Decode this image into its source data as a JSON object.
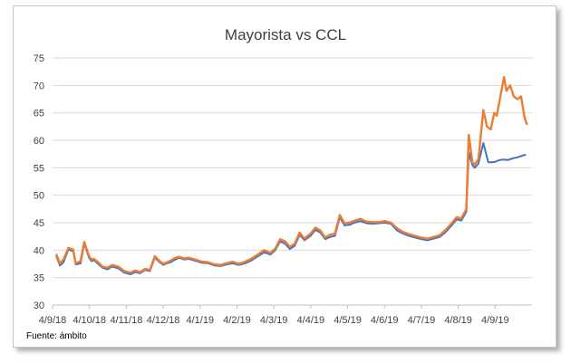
{
  "chart_data": {
    "type": "line",
    "title": "Mayorista vs CCL",
    "xlabel": "",
    "ylabel": "",
    "ylim": [
      30,
      75
    ],
    "yticks": [
      30,
      35,
      40,
      45,
      50,
      55,
      60,
      65,
      70,
      75
    ],
    "xticks": [
      "4/9/18",
      "4/10/18",
      "4/11/18",
      "4/12/18",
      "4/1/19",
      "4/2/19",
      "4/3/19",
      "4/4/19",
      "4/5/19",
      "4/6/19",
      "4/7/19",
      "4/8/19",
      "4/9/19"
    ],
    "grid": "horizontal",
    "legend": "none",
    "source": "Fuente: ámbito",
    "series": [
      {
        "color": "#4472c4",
        "x": [
          "2018-09-04",
          "2018-09-07",
          "2018-09-10",
          "2018-09-14",
          "2018-09-18",
          "2018-09-20",
          "2018-09-24",
          "2018-09-27",
          "2018-10-01",
          "2018-10-03",
          "2018-10-05",
          "2018-10-09",
          "2018-10-12",
          "2018-10-16",
          "2018-10-20",
          "2018-10-25",
          "2018-10-30",
          "2018-11-04",
          "2018-11-08",
          "2018-11-12",
          "2018-11-16",
          "2018-11-20",
          "2018-11-24",
          "2018-11-28",
          "2018-12-01",
          "2018-12-04",
          "2018-12-07",
          "2018-12-10",
          "2018-12-14",
          "2018-12-18",
          "2018-12-22",
          "2018-12-27",
          "2019-01-02",
          "2019-01-07",
          "2019-01-12",
          "2019-01-17",
          "2019-01-22",
          "2019-01-27",
          "2019-02-01",
          "2019-02-06",
          "2019-02-11",
          "2019-02-16",
          "2019-02-22",
          "2019-02-27",
          "2019-03-03",
          "2019-03-07",
          "2019-03-11",
          "2019-03-15",
          "2019-03-19",
          "2019-03-23",
          "2019-03-27",
          "2019-04-01",
          "2019-04-05",
          "2019-04-09",
          "2019-04-13",
          "2019-04-17",
          "2019-04-21",
          "2019-04-25",
          "2019-04-29",
          "2019-05-03",
          "2019-05-07",
          "2019-05-12",
          "2019-05-17",
          "2019-05-22",
          "2019-05-27",
          "2019-06-01",
          "2019-06-06",
          "2019-06-11",
          "2019-06-16",
          "2019-06-21",
          "2019-06-26",
          "2019-07-01",
          "2019-07-06",
          "2019-07-11",
          "2019-07-16",
          "2019-07-21",
          "2019-07-26",
          "2019-07-30",
          "2019-08-03",
          "2019-08-07",
          "2019-08-09",
          "2019-08-12",
          "2019-08-14",
          "2019-08-17",
          "2019-08-21",
          "2019-08-25",
          "2019-08-28",
          "2019-08-31",
          "2019-09-02",
          "2019-09-06",
          "2019-09-10",
          "2019-09-14",
          "2019-09-18",
          "2019-09-22",
          "2019-09-25"
        ],
        "values": [
          39.0,
          37.2,
          37.8,
          40.1,
          39.8,
          37.4,
          37.6,
          41.2,
          38.6,
          38.0,
          38.2,
          37.4,
          36.8,
          36.5,
          37.0,
          36.7,
          35.9,
          35.6,
          36.0,
          35.8,
          36.4,
          36.2,
          38.6,
          37.8,
          37.3,
          37.6,
          37.8,
          38.2,
          38.6,
          38.3,
          38.4,
          38.1,
          37.7,
          37.6,
          37.2,
          37.1,
          37.4,
          37.6,
          37.3,
          37.6,
          38.1,
          38.8,
          39.6,
          39.2,
          40.0,
          41.6,
          41.2,
          40.2,
          40.8,
          42.8,
          41.8,
          42.6,
          43.7,
          43.2,
          42.0,
          42.4,
          42.6,
          46.0,
          44.5,
          44.6,
          45.0,
          45.3,
          44.9,
          44.8,
          44.9,
          45.0,
          44.8,
          43.6,
          43.0,
          42.6,
          42.3,
          42.0,
          41.8,
          42.1,
          42.4,
          43.3,
          44.5,
          45.6,
          45.4,
          47.0,
          57.8,
          55.5,
          55.0,
          55.8,
          59.5,
          56.0,
          56.0,
          56.1,
          56.3,
          56.5,
          56.4,
          56.7,
          56.9,
          57.2,
          57.4
        ]
      },
      {
        "color": "#ed7d31",
        "x": [
          "2018-09-04",
          "2018-09-07",
          "2018-09-10",
          "2018-09-14",
          "2018-09-18",
          "2018-09-20",
          "2018-09-24",
          "2018-09-27",
          "2018-10-01",
          "2018-10-03",
          "2018-10-05",
          "2018-10-09",
          "2018-10-12",
          "2018-10-16",
          "2018-10-20",
          "2018-10-25",
          "2018-10-30",
          "2018-11-04",
          "2018-11-08",
          "2018-11-12",
          "2018-11-16",
          "2018-11-20",
          "2018-11-24",
          "2018-11-28",
          "2018-12-01",
          "2018-12-04",
          "2018-12-07",
          "2018-12-10",
          "2018-12-14",
          "2018-12-18",
          "2018-12-22",
          "2018-12-27",
          "2019-01-02",
          "2019-01-07",
          "2019-01-12",
          "2019-01-17",
          "2019-01-22",
          "2019-01-27",
          "2019-02-01",
          "2019-02-06",
          "2019-02-11",
          "2019-02-16",
          "2019-02-22",
          "2019-02-27",
          "2019-03-03",
          "2019-03-07",
          "2019-03-11",
          "2019-03-15",
          "2019-03-19",
          "2019-03-23",
          "2019-03-27",
          "2019-04-01",
          "2019-04-05",
          "2019-04-09",
          "2019-04-13",
          "2019-04-17",
          "2019-04-21",
          "2019-04-25",
          "2019-04-29",
          "2019-05-03",
          "2019-05-07",
          "2019-05-12",
          "2019-05-17",
          "2019-05-22",
          "2019-05-27",
          "2019-06-01",
          "2019-06-06",
          "2019-06-11",
          "2019-06-16",
          "2019-06-21",
          "2019-06-26",
          "2019-07-01",
          "2019-07-06",
          "2019-07-11",
          "2019-07-16",
          "2019-07-21",
          "2019-07-26",
          "2019-07-30",
          "2019-08-03",
          "2019-08-07",
          "2019-08-09",
          "2019-08-12",
          "2019-08-14",
          "2019-08-17",
          "2019-08-21",
          "2019-08-24",
          "2019-08-27",
          "2019-08-30",
          "2019-09-01",
          "2019-09-04",
          "2019-09-07",
          "2019-09-09",
          "2019-09-12",
          "2019-09-15",
          "2019-09-18",
          "2019-09-21",
          "2019-09-24",
          "2019-09-26"
        ],
        "values": [
          39.3,
          37.6,
          38.3,
          40.4,
          40.1,
          37.6,
          38.0,
          41.5,
          38.9,
          38.3,
          38.4,
          37.7,
          37.0,
          36.8,
          37.3,
          37.0,
          36.2,
          35.9,
          36.3,
          36.0,
          36.6,
          36.4,
          38.9,
          38.0,
          37.5,
          37.8,
          38.1,
          38.5,
          38.8,
          38.5,
          38.6,
          38.3,
          37.9,
          37.8,
          37.4,
          37.3,
          37.6,
          37.9,
          37.5,
          37.9,
          38.4,
          39.1,
          40.0,
          39.5,
          40.3,
          42.0,
          41.6,
          40.6,
          41.2,
          43.2,
          42.1,
          43.0,
          44.1,
          43.6,
          42.3,
          42.8,
          43.0,
          46.4,
          44.9,
          45.0,
          45.4,
          45.7,
          45.2,
          45.1,
          45.1,
          45.3,
          45.0,
          44.0,
          43.3,
          42.9,
          42.6,
          42.3,
          42.1,
          42.4,
          42.7,
          43.7,
          44.9,
          46.0,
          45.8,
          47.5,
          61.0,
          56.0,
          55.6,
          56.6,
          65.5,
          62.5,
          62.0,
          65.0,
          64.5,
          68.0,
          71.5,
          69.0,
          70.0,
          68.0,
          67.5,
          68.0,
          64.0,
          62.8
        ]
      }
    ]
  }
}
